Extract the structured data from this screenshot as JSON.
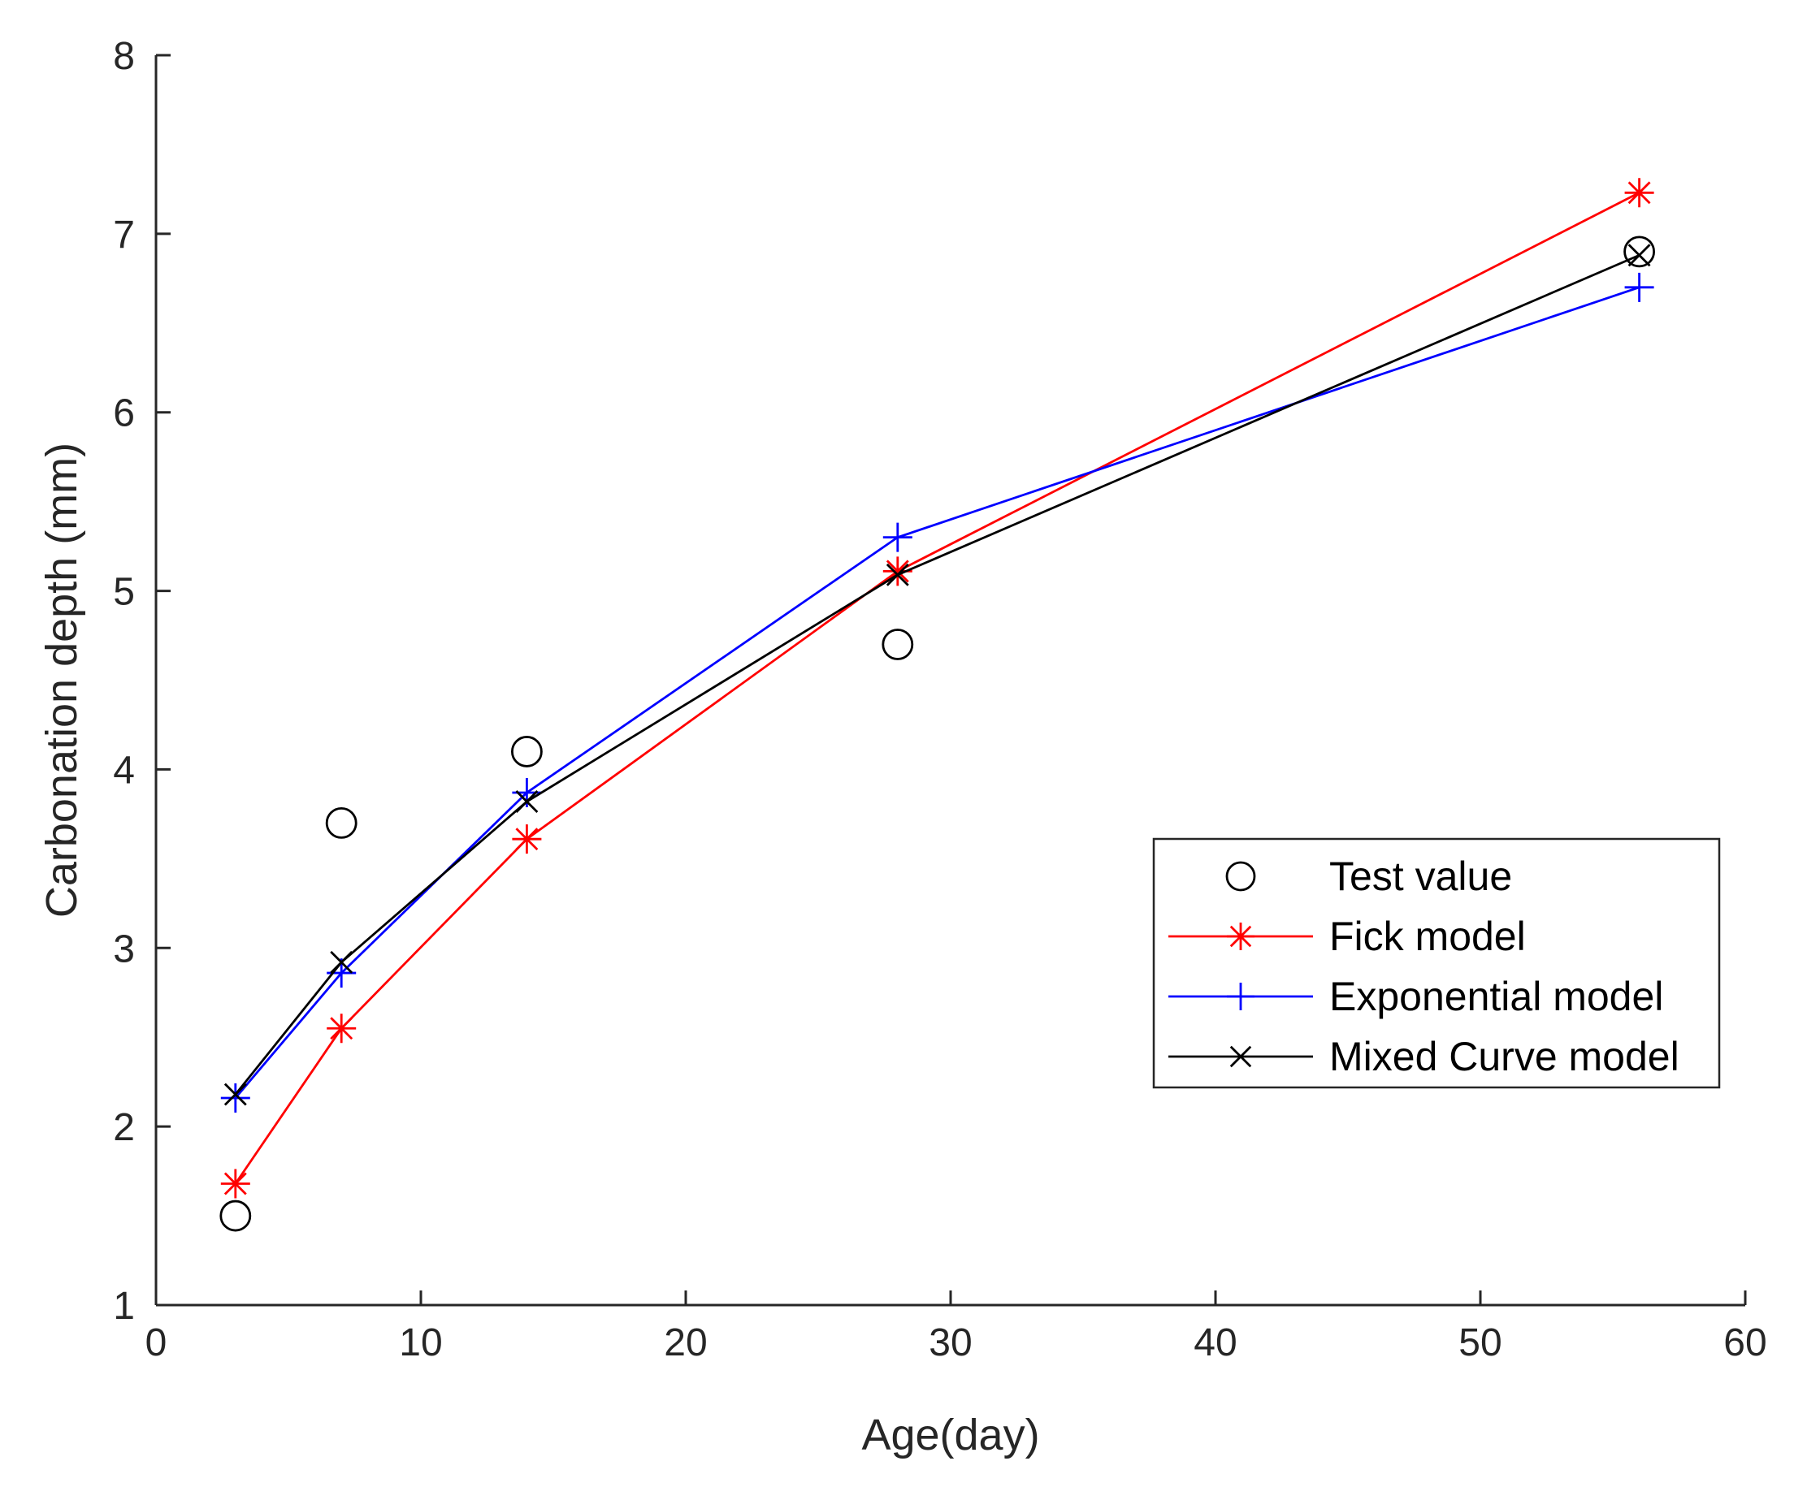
{
  "chart_data": {
    "type": "line",
    "title": "",
    "xlabel": "Age(day)",
    "ylabel": "Carbonation depth (mm)",
    "xlim": [
      0,
      60
    ],
    "ylim": [
      1,
      8
    ],
    "xticks": [
      0,
      10,
      20,
      30,
      40,
      50,
      60
    ],
    "yticks": [
      1,
      2,
      3,
      4,
      5,
      6,
      7,
      8
    ],
    "grid": false,
    "legend_position": "lower-right",
    "series": [
      {
        "name": "Test value",
        "color": "#000000",
        "marker": "circle",
        "line": false,
        "x": [
          3,
          7,
          14,
          28,
          56
        ],
        "y": [
          1.5,
          3.7,
          4.1,
          4.7,
          6.9
        ]
      },
      {
        "name": "Fick model",
        "color": "#ff0000",
        "marker": "asterisk",
        "line": true,
        "x": [
          3,
          7,
          14,
          28,
          56
        ],
        "y": [
          1.68,
          2.55,
          3.61,
          5.11,
          7.23
        ]
      },
      {
        "name": "Exponential model",
        "color": "#0000ff",
        "marker": "plus",
        "line": true,
        "x": [
          3,
          7,
          14,
          28,
          56
        ],
        "y": [
          2.16,
          2.86,
          3.87,
          5.3,
          6.7
        ]
      },
      {
        "name": "Mixed Curve model",
        "color": "#000000",
        "marker": "x",
        "line": true,
        "x": [
          3,
          7,
          14,
          28,
          56
        ],
        "y": [
          2.18,
          2.92,
          3.82,
          5.09,
          6.88
        ]
      }
    ]
  }
}
